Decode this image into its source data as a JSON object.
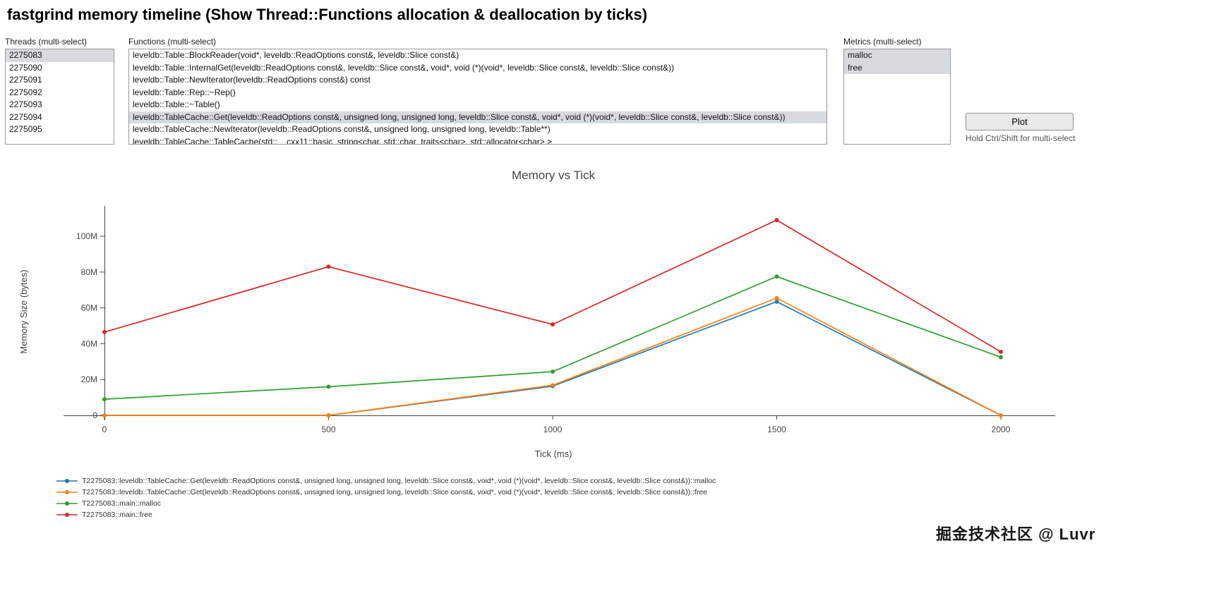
{
  "header": {
    "title": "fastgrind memory timeline (Show Thread::Functions allocation & deallocation by ticks)"
  },
  "controls": {
    "threads": {
      "label": "Threads (multi-select)",
      "options": [
        {
          "label": "2275083",
          "selected": true
        },
        {
          "label": "2275090",
          "selected": false
        },
        {
          "label": "2275091",
          "selected": false
        },
        {
          "label": "2275092",
          "selected": false
        },
        {
          "label": "2275093",
          "selected": false
        },
        {
          "label": "2275094",
          "selected": false
        },
        {
          "label": "2275095",
          "selected": false
        }
      ]
    },
    "functions": {
      "label": "Functions (multi-select)",
      "options": [
        {
          "label": "leveldb::Table::BlockReader(void*, leveldb::ReadOptions const&, leveldb::Slice const&)",
          "selected": false
        },
        {
          "label": "leveldb::Table::InternalGet(leveldb::ReadOptions const&, leveldb::Slice const&, void*, void (*)(void*, leveldb::Slice const&, leveldb::Slice const&))",
          "selected": false
        },
        {
          "label": "leveldb::Table::NewIterator(leveldb::ReadOptions const&) const",
          "selected": false
        },
        {
          "label": "leveldb::Table::Rep::~Rep()",
          "selected": false
        },
        {
          "label": "leveldb::Table::~Table()",
          "selected": false
        },
        {
          "label": "leveldb::TableCache::Get(leveldb::ReadOptions const&, unsigned long, unsigned long, leveldb::Slice const&, void*, void (*)(void*, leveldb::Slice const&, leveldb::Slice const&))",
          "selected": true
        },
        {
          "label": "leveldb::TableCache::NewIterator(leveldb::ReadOptions const&, unsigned long, unsigned long, leveldb::Table**)",
          "selected": false
        },
        {
          "label": "leveldb::TableCache::TableCache(std::__cxx11::basic_string<char, std::char_traits<char>, std::allocator<char> >",
          "selected": false
        }
      ]
    },
    "metrics": {
      "label": "Metrics (multi-select)",
      "options": [
        {
          "label": "malloc",
          "selected": true
        },
        {
          "label": "free",
          "selected": true
        }
      ]
    },
    "plot_button": "Plot",
    "hint": "Hold Ctrl/Shift for multi-select"
  },
  "chart_data": {
    "type": "line",
    "title": "Memory vs Tick",
    "xlabel": "Tick (ms)",
    "ylabel": "Memory Size (bytes)",
    "grid": false,
    "legend_position": "bottom-left",
    "x": [
      0,
      500,
      1000,
      1500,
      2000
    ],
    "x_ticks": [
      "0",
      "500",
      "1000",
      "1500",
      "2000"
    ],
    "y_ticks": [
      {
        "value": 0,
        "label": "0"
      },
      {
        "value": 20000000,
        "label": "20M"
      },
      {
        "value": 40000000,
        "label": "40M"
      },
      {
        "value": 60000000,
        "label": "60M"
      },
      {
        "value": 80000000,
        "label": "80M"
      },
      {
        "value": 100000000,
        "label": "100M"
      }
    ],
    "ylim": [
      0,
      115000000
    ],
    "series": [
      {
        "name": "T2275083::leveldb::TableCache::Get(leveldb::ReadOptions const&, unsigned long, unsigned long, leveldb::Slice const&, void*, void (*)(void*, leveldb::Slice const&, leveldb::Slice const&))::malloc",
        "color": "#1f77b4",
        "values": [
          0,
          0,
          16300000,
          63500000,
          0
        ]
      },
      {
        "name": "T2275083::leveldb::TableCache::Get(leveldb::ReadOptions const&, unsigned long, unsigned long, leveldb::Slice const&, void*, void (*)(void*, leveldb::Slice const&, leveldb::Slice const&))::free",
        "color": "#ff7f0e",
        "values": [
          0,
          0,
          16800000,
          65500000,
          0
        ]
      },
      {
        "name": "T2275083::main::malloc",
        "color": "#2ca02c",
        "values": [
          9000000,
          16000000,
          24400000,
          77500000,
          32500000
        ]
      },
      {
        "name": "T2275083::main::free",
        "color": "#d62728",
        "values": [
          46500000,
          83000000,
          50800000,
          109000000,
          35500000
        ]
      }
    ]
  },
  "watermark": "掘金技术社区 @ Luvr"
}
